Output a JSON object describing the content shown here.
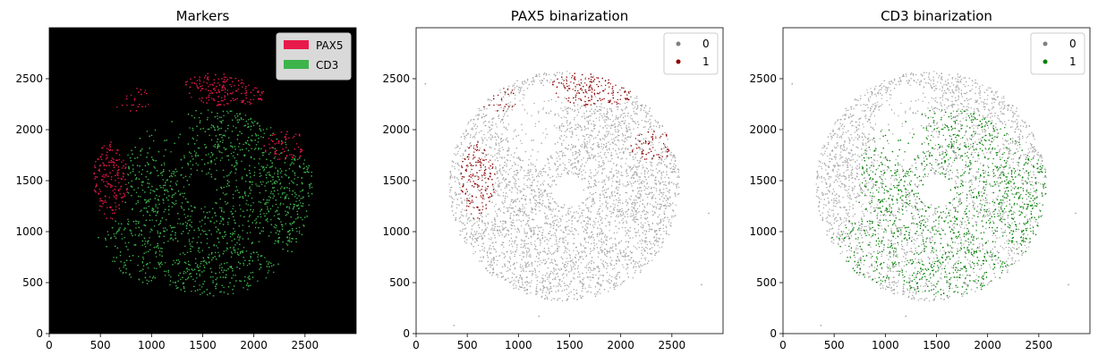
{
  "chart_data": [
    {
      "type": "scatter",
      "title": "Markers",
      "xlabel": "",
      "ylabel": "",
      "xlim": [
        0,
        3000
      ],
      "ylim": [
        0,
        3000
      ],
      "xticks": [
        0,
        500,
        1000,
        1500,
        2000,
        2500
      ],
      "yticks": [
        0,
        500,
        1000,
        1500,
        2000,
        2500
      ],
      "background": "#000000",
      "grid": false,
      "legend_position": "top-right",
      "legend_style": "patch",
      "series": [
        {
          "name": "PAX5",
          "color": "#e8194b"
        },
        {
          "name": "CD3",
          "color": "#3cb44b"
        }
      ],
      "tissue_region": {
        "center_x": 1450,
        "center_y": 1450,
        "radius": 1130
      }
    },
    {
      "type": "scatter",
      "title": "PAX5 binarization",
      "xlabel": "",
      "ylabel": "",
      "xlim": [
        0,
        3000
      ],
      "ylim": [
        0,
        3000
      ],
      "xticks": [
        0,
        500,
        1000,
        1500,
        2000,
        2500
      ],
      "yticks": [
        0,
        500,
        1000,
        1500,
        2000,
        2500
      ],
      "background": "#ffffff",
      "grid": false,
      "legend_position": "top-right",
      "legend_style": "marker",
      "series": [
        {
          "name": "0",
          "color": "#a9a9a9",
          "legend_color": "#808080"
        },
        {
          "name": "1",
          "color": "#8b0000"
        }
      ],
      "tissue_region": {
        "center_x": 1450,
        "center_y": 1450,
        "radius": 1130
      },
      "outliers": [
        [
          90,
          2450
        ],
        [
          370,
          80
        ],
        [
          1200,
          170
        ],
        [
          2790,
          480
        ],
        [
          2860,
          1180
        ]
      ]
    },
    {
      "type": "scatter",
      "title": "CD3 binarization",
      "xlabel": "",
      "ylabel": "",
      "xlim": [
        0,
        3000
      ],
      "ylim": [
        0,
        3000
      ],
      "xticks": [
        0,
        500,
        1000,
        1500,
        2000,
        2500
      ],
      "yticks": [
        0,
        500,
        1000,
        1500,
        2000,
        2500
      ],
      "background": "#ffffff",
      "grid": false,
      "legend_position": "top-right",
      "legend_style": "marker",
      "series": [
        {
          "name": "0",
          "color": "#a9a9a9",
          "legend_color": "#808080"
        },
        {
          "name": "1",
          "color": "#008000"
        }
      ],
      "tissue_region": {
        "center_x": 1450,
        "center_y": 1450,
        "radius": 1130
      },
      "outliers": [
        [
          90,
          2450
        ],
        [
          370,
          80
        ],
        [
          1200,
          170
        ],
        [
          2790,
          480
        ],
        [
          2860,
          1180
        ]
      ]
    }
  ]
}
